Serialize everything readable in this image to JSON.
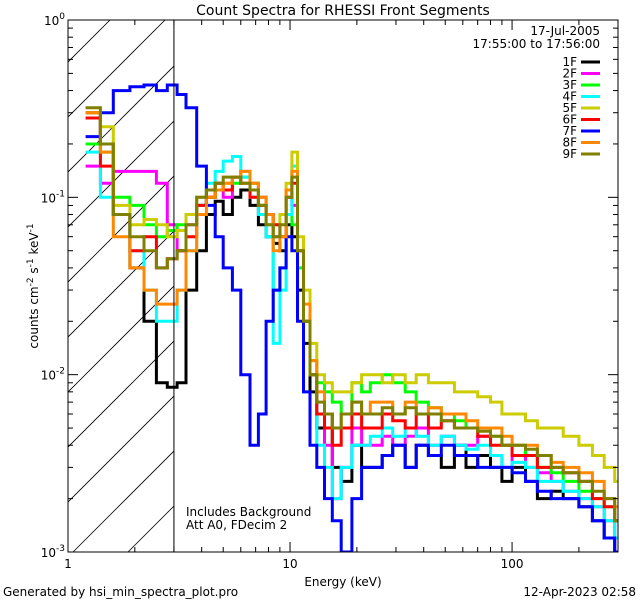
{
  "chart_data": {
    "type": "line",
    "title": "Count Spectra for RHESSI Front Segments",
    "xlabel": "Energy (keV)",
    "ylabel_text": "counts cm",
    "ylabel_sup1": "-2",
    "ylabel_mid": " s",
    "ylabel_sup2": "-1",
    "ylabel_end": " keV",
    "ylabel_sup3": "-1",
    "x_scale": "log",
    "y_scale": "log",
    "xlim": [
      1,
      300
    ],
    "ylim": [
      0.001,
      1
    ],
    "x_ticks": [
      {
        "value": 1,
        "label": "1"
      },
      {
        "value": 10,
        "label": "10"
      },
      {
        "value": 100,
        "label": "100"
      }
    ],
    "y_ticks": [
      {
        "value": 0.001,
        "base": "10",
        "exp": "-3"
      },
      {
        "value": 0.01,
        "base": "10",
        "exp": "-2"
      },
      {
        "value": 0.1,
        "base": "10",
        "exp": "-1"
      },
      {
        "value": 1,
        "base": "10",
        "exp": "0"
      }
    ],
    "attenuator_threshold_kev": 3,
    "date": "17-Jul-2005",
    "time_range": "17:55:00 to 17:56:00",
    "annotations": [
      "Includes Background",
      "Att A0, FDecim 2"
    ],
    "footer_left": "Generated by hsi_min_spectra_plot.pro",
    "footer_right": "12-Apr-2023 02:58",
    "series": [
      {
        "name": "1F",
        "color": "#000000",
        "x": [
          1.2,
          1.4,
          1.6,
          1.9,
          2.2,
          2.5,
          2.8,
          3.1,
          3.4,
          3.8,
          4.2,
          4.6,
          5.0,
          5.5,
          6.0,
          6.6,
          7.2,
          7.8,
          8.4,
          9.0,
          9.6,
          10.2,
          10.8,
          11.5,
          12.3,
          13.2,
          14.3,
          15.5,
          17,
          19,
          21,
          23,
          26,
          29,
          33,
          37,
          42,
          48,
          55,
          62,
          70,
          80,
          90,
          100,
          115,
          130,
          150,
          170,
          200,
          230,
          260,
          290
        ],
        "y": [
          0.3,
          0.2,
          0.08,
          0.04,
          0.02,
          0.009,
          0.0085,
          0.009,
          0.03,
          0.05,
          0.08,
          0.095,
          0.08,
          0.1,
          0.11,
          0.09,
          0.07,
          0.06,
          0.055,
          0.05,
          0.07,
          0.06,
          0.03,
          0.015,
          0.008,
          0.005,
          0.006,
          0.003,
          0.0025,
          0.004,
          0.003,
          0.003,
          0.0035,
          0.004,
          0.003,
          0.004,
          0.0035,
          0.003,
          0.004,
          0.003,
          0.0035,
          0.003,
          0.0025,
          0.003,
          0.0025,
          0.002,
          0.0022,
          0.002,
          0.0018,
          0.0015,
          0.0012,
          0.001
        ]
      },
      {
        "name": "2F",
        "color": "#ff00ff",
        "x": [
          1.2,
          1.4,
          1.6,
          1.9,
          2.2,
          2.5,
          2.8,
          3.1,
          3.4,
          3.8,
          4.2,
          4.6,
          5.0,
          5.5,
          6.0,
          6.6,
          7.2,
          7.8,
          8.4,
          9.0,
          9.6,
          10.2,
          10.8,
          11.5,
          12.3,
          13.2,
          14.3,
          15.5,
          17,
          19,
          21,
          23,
          26,
          29,
          33,
          37,
          42,
          48,
          55,
          62,
          70,
          80,
          90,
          100,
          115,
          130,
          150,
          170,
          200,
          230,
          260,
          290
        ],
        "y": [
          0.15,
          0.12,
          0.14,
          0.14,
          0.14,
          0.12,
          0.07,
          0.05,
          0.07,
          0.09,
          0.1,
          0.11,
          0.1,
          0.13,
          0.14,
          0.12,
          0.1,
          0.08,
          0.06,
          0.06,
          0.1,
          0.09,
          0.05,
          0.02,
          0.01,
          0.006,
          0.004,
          0.002,
          0.003,
          0.005,
          0.004,
          0.004,
          0.0045,
          0.004,
          0.0045,
          0.005,
          0.004,
          0.0045,
          0.004,
          0.004,
          0.0045,
          0.0035,
          0.003,
          0.0035,
          0.003,
          0.0028,
          0.0025,
          0.0022,
          0.002,
          0.0018,
          0.0015,
          0.0012
        ]
      },
      {
        "name": "3F",
        "color": "#00ff00",
        "x": [
          1.2,
          1.4,
          1.6,
          1.9,
          2.2,
          2.5,
          2.8,
          3.1,
          3.4,
          3.8,
          4.2,
          4.6,
          5.0,
          5.5,
          6.0,
          6.6,
          7.2,
          7.8,
          8.4,
          9.0,
          9.6,
          10.2,
          10.8,
          11.5,
          12.3,
          13.2,
          14.3,
          15.5,
          17,
          19,
          21,
          23,
          26,
          29,
          33,
          37,
          42,
          48,
          55,
          62,
          70,
          80,
          90,
          100,
          115,
          130,
          150,
          170,
          200,
          230,
          260,
          290
        ],
        "y": [
          0.2,
          0.18,
          0.1,
          0.09,
          0.07,
          0.06,
          0.065,
          0.07,
          0.08,
          0.09,
          0.1,
          0.12,
          0.11,
          0.12,
          0.13,
          0.12,
          0.09,
          0.07,
          0.03,
          0.04,
          0.08,
          0.07,
          0.04,
          0.02,
          0.012,
          0.009,
          0.008,
          0.007,
          0.006,
          0.009,
          0.008,
          0.009,
          0.01,
          0.009,
          0.008,
          0.007,
          0.0065,
          0.006,
          0.0055,
          0.005,
          0.005,
          0.0045,
          0.004,
          0.004,
          0.0035,
          0.003,
          0.0028,
          0.0025,
          0.0022,
          0.002,
          0.0018,
          0.0015
        ]
      },
      {
        "name": "4F",
        "color": "#00ffff",
        "x": [
          1.2,
          1.4,
          1.6,
          1.9,
          2.2,
          2.5,
          2.8,
          3.1,
          3.4,
          3.8,
          4.2,
          4.6,
          5.0,
          5.5,
          6.0,
          6.6,
          7.2,
          7.8,
          8.4,
          9.0,
          9.6,
          10.2,
          10.8,
          11.5,
          12.3,
          13.2,
          14.3,
          15.5,
          17,
          19,
          21,
          23,
          26,
          29,
          33,
          37,
          42,
          48,
          55,
          62,
          70,
          80,
          90,
          100,
          115,
          130,
          150,
          170,
          200,
          230,
          260,
          290
        ],
        "y": [
          0.18,
          0.1,
          0.08,
          0.05,
          0.03,
          0.02,
          0.02,
          0.03,
          0.05,
          0.09,
          0.12,
          0.14,
          0.16,
          0.17,
          0.13,
          0.1,
          0.08,
          0.06,
          0.015,
          0.03,
          0.08,
          0.15,
          0.05,
          0.02,
          0.01,
          0.004,
          0.003,
          0.002,
          0.003,
          0.004,
          0.004,
          0.0045,
          0.005,
          0.0045,
          0.005,
          0.0045,
          0.004,
          0.0045,
          0.004,
          0.0038,
          0.004,
          0.0035,
          0.003,
          0.0032,
          0.003,
          0.0025,
          0.0025,
          0.0022,
          0.002,
          0.0018,
          0.0015,
          0.0012
        ]
      },
      {
        "name": "5F",
        "color": "#cccc00",
        "x": [
          1.2,
          1.4,
          1.6,
          1.9,
          2.2,
          2.5,
          2.8,
          3.1,
          3.4,
          3.8,
          4.2,
          4.6,
          5.0,
          5.5,
          6.0,
          6.6,
          7.2,
          7.8,
          8.4,
          9.0,
          9.6,
          10.2,
          10.8,
          11.5,
          12.3,
          13.2,
          14.3,
          15.5,
          17,
          19,
          21,
          23,
          26,
          29,
          33,
          37,
          42,
          48,
          55,
          62,
          70,
          80,
          90,
          100,
          115,
          130,
          150,
          170,
          200,
          230,
          260,
          290
        ],
        "y": [
          0.3,
          0.25,
          0.09,
          0.07,
          0.075,
          0.07,
          0.06,
          0.065,
          0.08,
          0.1,
          0.11,
          0.12,
          0.12,
          0.13,
          0.14,
          0.12,
          0.1,
          0.08,
          0.07,
          0.08,
          0.12,
          0.18,
          0.06,
          0.03,
          0.015,
          0.01,
          0.009,
          0.008,
          0.008,
          0.009,
          0.01,
          0.01,
          0.009,
          0.01,
          0.009,
          0.01,
          0.009,
          0.009,
          0.008,
          0.008,
          0.0075,
          0.007,
          0.006,
          0.006,
          0.0055,
          0.005,
          0.005,
          0.0045,
          0.004,
          0.0035,
          0.003,
          0.0025
        ]
      },
      {
        "name": "6F",
        "color": "#ff0000",
        "x": [
          1.2,
          1.4,
          1.6,
          1.9,
          2.2,
          2.5,
          2.8,
          3.1,
          3.4,
          3.8,
          4.2,
          4.6,
          5.0,
          5.5,
          6.0,
          6.6,
          7.2,
          7.8,
          8.4,
          9.0,
          9.6,
          10.2,
          10.8,
          11.5,
          12.3,
          13.2,
          14.3,
          15.5,
          17,
          19,
          21,
          23,
          26,
          29,
          33,
          37,
          42,
          48,
          55,
          62,
          70,
          80,
          90,
          100,
          115,
          130,
          150,
          170,
          200,
          230,
          260,
          290
        ],
        "y": [
          0.28,
          0.15,
          0.08,
          0.05,
          0.06,
          0.04,
          0.045,
          0.05,
          0.06,
          0.09,
          0.1,
          0.12,
          0.11,
          0.13,
          0.12,
          0.1,
          0.09,
          0.08,
          0.07,
          0.06,
          0.1,
          0.12,
          0.05,
          0.02,
          0.01,
          0.006,
          0.005,
          0.004,
          0.005,
          0.006,
          0.005,
          0.005,
          0.006,
          0.0055,
          0.005,
          0.006,
          0.005,
          0.0055,
          0.005,
          0.005,
          0.0045,
          0.004,
          0.004,
          0.0035,
          0.0035,
          0.003,
          0.003,
          0.0028,
          0.0025,
          0.002,
          0.0018,
          0.0015
        ]
      },
      {
        "name": "7F",
        "color": "#0000ff",
        "x": [
          1.2,
          1.4,
          1.6,
          1.9,
          2.2,
          2.5,
          2.8,
          3.1,
          3.4,
          3.8,
          4.2,
          4.6,
          5.0,
          5.5,
          6.0,
          6.6,
          7.2,
          7.8,
          8.4,
          9.0,
          9.6,
          10.2,
          10.8,
          11.5,
          12.3,
          13.2,
          14.3,
          15.5,
          17,
          19,
          21,
          23,
          26,
          29,
          33,
          37,
          42,
          48,
          55,
          62,
          70,
          80,
          90,
          100,
          115,
          130,
          150,
          170,
          200,
          230,
          260,
          290
        ],
        "y": [
          0.22,
          0.3,
          0.4,
          0.42,
          0.43,
          0.4,
          0.43,
          0.38,
          0.32,
          0.15,
          0.09,
          0.06,
          0.04,
          0.03,
          0.01,
          0.004,
          0.006,
          0.02,
          0.03,
          0.04,
          0.06,
          0.05,
          0.02,
          0.008,
          0.004,
          0.003,
          0.002,
          0.0015,
          0.001,
          0.002,
          0.003,
          0.003,
          0.0035,
          0.004,
          0.003,
          0.004,
          0.0035,
          0.004,
          0.0035,
          0.0035,
          0.003,
          0.003,
          0.003,
          0.0028,
          0.0025,
          0.0022,
          0.002,
          0.002,
          0.0018,
          0.0015,
          0.0012,
          0.001
        ]
      },
      {
        "name": "8F",
        "color": "#ff8800",
        "x": [
          1.2,
          1.4,
          1.6,
          1.9,
          2.2,
          2.5,
          2.8,
          3.1,
          3.4,
          3.8,
          4.2,
          4.6,
          5.0,
          5.5,
          6.0,
          6.6,
          7.2,
          7.8,
          8.4,
          9.0,
          9.6,
          10.2,
          10.8,
          11.5,
          12.3,
          13.2,
          14.3,
          15.5,
          17,
          19,
          21,
          23,
          26,
          29,
          33,
          37,
          42,
          48,
          55,
          62,
          70,
          80,
          90,
          100,
          115,
          130,
          150,
          170,
          200,
          230,
          260,
          290
        ],
        "y": [
          0.3,
          0.18,
          0.06,
          0.04,
          0.03,
          0.025,
          0.025,
          0.03,
          0.05,
          0.08,
          0.1,
          0.11,
          0.12,
          0.13,
          0.14,
          0.12,
          0.1,
          0.08,
          0.05,
          0.06,
          0.11,
          0.14,
          0.05,
          0.025,
          0.012,
          0.008,
          0.006,
          0.005,
          0.006,
          0.007,
          0.006,
          0.007,
          0.007,
          0.006,
          0.007,
          0.006,
          0.0065,
          0.006,
          0.006,
          0.0055,
          0.005,
          0.005,
          0.0045,
          0.004,
          0.004,
          0.0035,
          0.0032,
          0.003,
          0.0028,
          0.0025,
          0.002,
          0.0018
        ]
      },
      {
        "name": "9F",
        "color": "#808000",
        "x": [
          1.2,
          1.4,
          1.6,
          1.9,
          2.2,
          2.5,
          2.8,
          3.1,
          3.4,
          3.8,
          4.2,
          4.6,
          5.0,
          5.5,
          6.0,
          6.6,
          7.2,
          7.8,
          8.4,
          9.0,
          9.6,
          10.2,
          10.8,
          11.5,
          12.3,
          13.2,
          14.3,
          15.5,
          17,
          19,
          21,
          23,
          26,
          29,
          33,
          37,
          42,
          48,
          55,
          62,
          70,
          80,
          90,
          100,
          115,
          130,
          150,
          170,
          200,
          230,
          260,
          290
        ],
        "y": [
          0.32,
          0.2,
          0.08,
          0.06,
          0.05,
          0.04,
          0.045,
          0.05,
          0.07,
          0.1,
          0.11,
          0.12,
          0.13,
          0.13,
          0.12,
          0.11,
          0.09,
          0.07,
          0.06,
          0.07,
          0.1,
          0.13,
          0.05,
          0.02,
          0.01,
          0.007,
          0.006,
          0.005,
          0.006,
          0.007,
          0.006,
          0.006,
          0.0065,
          0.006,
          0.0065,
          0.006,
          0.006,
          0.0055,
          0.005,
          0.005,
          0.0048,
          0.0045,
          0.004,
          0.004,
          0.0038,
          0.0035,
          0.003,
          0.0028,
          0.0025,
          0.0022,
          0.002,
          0.0015
        ]
      }
    ]
  }
}
